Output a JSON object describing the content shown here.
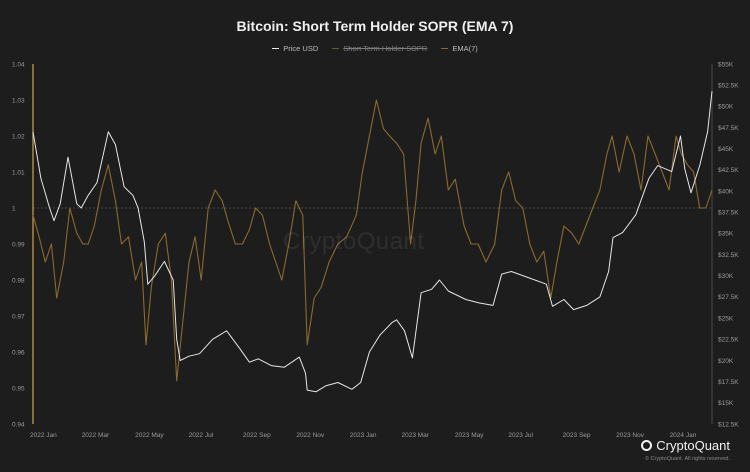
{
  "colors": {
    "price": "#e6e6e6",
    "sopr_ema": "#8a6a2e",
    "baseline": "#9a9a9a",
    "left_axis_marker": "#d4a24a"
  },
  "chart_data": {
    "type": "line",
    "title": "Bitcoin: Short Term Holder SOPR (EMA 7)",
    "legend": [
      {
        "label": "Price USD",
        "disabled": false
      },
      {
        "label": "Short Term Holder SOPR",
        "disabled": true
      },
      {
        "label": "EMA(7)",
        "disabled": false
      }
    ],
    "legend_position": "top-center",
    "grid": false,
    "reference_line": 1,
    "x_ticks": [
      "2022 Jan",
      "2022 Mar",
      "2022 May",
      "2022 Jul",
      "2022 Sep",
      "2022 Nov",
      "2023 Jan",
      "2023 Mar",
      "2023 May",
      "2023 Jul",
      "2023 Sep",
      "2023 Nov",
      "2024 Jan"
    ],
    "x_range": [
      "2022-01-01",
      "2024-02-15"
    ],
    "y_left": {
      "ticks": [
        "0.94",
        "0.95",
        "0.96",
        "0.97",
        "0.98",
        "0.99",
        "1",
        "1.01",
        "1.02",
        "1.03",
        "1.04"
      ],
      "range": [
        0.94,
        1.04
      ]
    },
    "y_right": {
      "ticks": [
        "$12.5K",
        "$15K",
        "$17.5K",
        "$20K",
        "$22.5K",
        "$25K",
        "$27.5K",
        "$30K",
        "$32.5K",
        "$35K",
        "$37.5K",
        "$40K",
        "$42.5K",
        "$45K",
        "$47.5K",
        "$50K",
        "$52.5K",
        "$55K"
      ],
      "range": [
        12500,
        55000
      ]
    },
    "series": [
      {
        "name": "Price USD",
        "axis": "right",
        "x": [
          "2022-01-01",
          "2022-01-10",
          "2022-01-20",
          "2022-01-25",
          "2022-02-01",
          "2022-02-10",
          "2022-02-20",
          "2022-02-25",
          "2022-03-05",
          "2022-03-15",
          "2022-03-28",
          "2022-04-05",
          "2022-04-15",
          "2022-04-25",
          "2022-05-01",
          "2022-05-08",
          "2022-05-12",
          "2022-05-20",
          "2022-05-31",
          "2022-06-10",
          "2022-06-14",
          "2022-06-18",
          "2022-06-28",
          "2022-07-10",
          "2022-07-25",
          "2022-08-10",
          "2022-08-25",
          "2022-09-05",
          "2022-09-15",
          "2022-09-30",
          "2022-10-15",
          "2022-11-01",
          "2022-11-08",
          "2022-11-10",
          "2022-11-20",
          "2022-12-01",
          "2022-12-15",
          "2022-12-31",
          "2023-01-10",
          "2023-01-20",
          "2023-02-01",
          "2023-02-15",
          "2023-02-20",
          "2023-03-01",
          "2023-03-10",
          "2023-03-20",
          "2023-04-01",
          "2023-04-10",
          "2023-04-20",
          "2023-05-10",
          "2023-05-25",
          "2023-06-10",
          "2023-06-20",
          "2023-07-01",
          "2023-07-20",
          "2023-08-10",
          "2023-08-17",
          "2023-08-30",
          "2023-09-10",
          "2023-09-25",
          "2023-10-10",
          "2023-10-20",
          "2023-10-25",
          "2023-11-05",
          "2023-11-20",
          "2023-12-05",
          "2023-12-15",
          "2023-12-31",
          "2024-01-10",
          "2024-01-15",
          "2024-01-22",
          "2024-02-01",
          "2024-02-10",
          "2024-02-15"
        ],
        "values": [
          47000,
          41500,
          38000,
          36500,
          38500,
          44000,
          38500,
          38000,
          39500,
          41000,
          47000,
          45500,
          40500,
          39500,
          38000,
          34000,
          29000,
          30000,
          31700,
          29500,
          22500,
          20000,
          20500,
          20800,
          22500,
          23500,
          21400,
          19800,
          20200,
          19400,
          19200,
          20400,
          18500,
          16500,
          16300,
          17000,
          17400,
          16600,
          17400,
          21000,
          23000,
          24500,
          24800,
          23500,
          20300,
          28000,
          28400,
          29500,
          28200,
          27200,
          26800,
          26500,
          30200,
          30500,
          29800,
          29000,
          26400,
          27200,
          26000,
          26500,
          27500,
          30500,
          34500,
          35100,
          37200,
          41500,
          43000,
          42300,
          46500,
          42600,
          39800,
          43000,
          47000,
          51800
        ]
      },
      {
        "name": "EMA(7)",
        "axis": "left",
        "x": [
          "2022-01-01",
          "2022-01-08",
          "2022-01-15",
          "2022-01-22",
          "2022-01-28",
          "2022-02-05",
          "2022-02-12",
          "2022-02-20",
          "2022-02-27",
          "2022-03-05",
          "2022-03-12",
          "2022-03-20",
          "2022-03-28",
          "2022-04-05",
          "2022-04-12",
          "2022-04-20",
          "2022-04-28",
          "2022-05-05",
          "2022-05-10",
          "2022-05-16",
          "2022-05-24",
          "2022-06-01",
          "2022-06-08",
          "2022-06-14",
          "2022-06-20",
          "2022-06-28",
          "2022-07-05",
          "2022-07-12",
          "2022-07-20",
          "2022-07-28",
          "2022-08-05",
          "2022-08-12",
          "2022-08-20",
          "2022-08-28",
          "2022-09-05",
          "2022-09-12",
          "2022-09-20",
          "2022-09-28",
          "2022-10-05",
          "2022-10-12",
          "2022-10-20",
          "2022-10-28",
          "2022-11-05",
          "2022-11-10",
          "2022-11-18",
          "2022-11-26",
          "2022-12-05",
          "2022-12-15",
          "2022-12-25",
          "2023-01-05",
          "2023-01-12",
          "2023-01-20",
          "2023-01-28",
          "2023-02-05",
          "2023-02-12",
          "2023-02-20",
          "2023-02-28",
          "2023-03-08",
          "2023-03-14",
          "2023-03-20",
          "2023-03-28",
          "2023-04-05",
          "2023-04-12",
          "2023-04-20",
          "2023-04-28",
          "2023-05-08",
          "2023-05-16",
          "2023-05-24",
          "2023-06-02",
          "2023-06-12",
          "2023-06-20",
          "2023-06-28",
          "2023-07-06",
          "2023-07-14",
          "2023-07-22",
          "2023-07-30",
          "2023-08-07",
          "2023-08-15",
          "2023-08-22",
          "2023-08-30",
          "2023-09-08",
          "2023-09-16",
          "2023-09-24",
          "2023-10-02",
          "2023-10-10",
          "2023-10-18",
          "2023-10-24",
          "2023-11-01",
          "2023-11-10",
          "2023-11-18",
          "2023-11-26",
          "2023-12-04",
          "2023-12-12",
          "2023-12-20",
          "2023-12-28",
          "2024-01-05",
          "2024-01-11",
          "2024-01-18",
          "2024-01-25",
          "2024-02-01",
          "2024-02-08",
          "2024-02-15"
        ],
        "values": [
          0.998,
          0.992,
          0.985,
          0.99,
          0.975,
          0.985,
          1.0,
          0.993,
          0.99,
          0.99,
          0.995,
          1.005,
          1.012,
          1.002,
          0.99,
          0.992,
          0.98,
          0.985,
          0.962,
          0.978,
          0.99,
          0.993,
          0.98,
          0.952,
          0.966,
          0.985,
          0.992,
          0.98,
          1.0,
          1.005,
          1.002,
          0.996,
          0.99,
          0.99,
          0.994,
          1.0,
          0.998,
          0.99,
          0.985,
          0.98,
          0.99,
          1.002,
          0.998,
          0.962,
          0.975,
          0.978,
          0.985,
          0.99,
          0.992,
          0.998,
          1.01,
          1.02,
          1.03,
          1.022,
          1.02,
          1.018,
          1.015,
          0.99,
          1.002,
          1.018,
          1.025,
          1.015,
          1.02,
          1.005,
          1.008,
          0.995,
          0.99,
          0.99,
          0.985,
          0.99,
          1.005,
          1.01,
          1.002,
          1.0,
          0.99,
          0.985,
          0.988,
          0.975,
          0.985,
          0.995,
          0.993,
          0.99,
          0.995,
          1.0,
          1.005,
          1.015,
          1.02,
          1.01,
          1.02,
          1.015,
          1.005,
          1.02,
          1.015,
          1.01,
          1.005,
          1.02,
          1.015,
          1.012,
          1.01,
          1.0,
          1.0,
          1.005
        ]
      }
    ]
  },
  "watermark": "CryptoQuant",
  "brand": {
    "name": "CryptoQuant",
    "copyright": "© CryptoQuant. All rights reserved."
  }
}
